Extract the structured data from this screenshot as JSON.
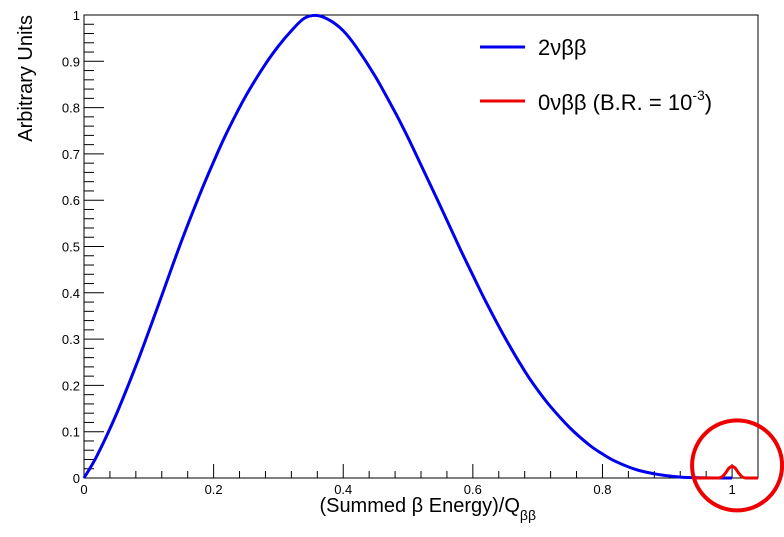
{
  "chart_data": {
    "type": "line",
    "xlabel": "(Summed β Energy)/Q",
    "xlabel_sub": "ββ",
    "ylabel": "Arbitrary Units",
    "xlim": [
      0,
      1.04
    ],
    "ylim": [
      0,
      1
    ],
    "grid": false,
    "legend_position": "top-right",
    "x_ticks": [
      {
        "value": 0,
        "label": "0"
      },
      {
        "value": 0.2,
        "label": "0.2"
      },
      {
        "value": 0.4,
        "label": "0.4"
      },
      {
        "value": 0.6,
        "label": "0.6"
      },
      {
        "value": 0.8,
        "label": "0.8"
      },
      {
        "value": 1,
        "label": "1"
      }
    ],
    "y_ticks": [
      {
        "value": 0,
        "label": "0"
      },
      {
        "value": 0.1,
        "label": "0.1"
      },
      {
        "value": 0.2,
        "label": "0.2"
      },
      {
        "value": 0.3,
        "label": "0.3"
      },
      {
        "value": 0.4,
        "label": "0.4"
      },
      {
        "value": 0.5,
        "label": "0.5"
      },
      {
        "value": 0.6,
        "label": "0.6"
      },
      {
        "value": 0.7,
        "label": "0.7"
      },
      {
        "value": 0.8,
        "label": "0.8"
      },
      {
        "value": 0.9,
        "label": "0.9"
      },
      {
        "value": 1,
        "label": "1"
      }
    ],
    "series": [
      {
        "name": "2νββ",
        "color": "#0000ee",
        "x": [
          0,
          0.02,
          0.05,
          0.08,
          0.1,
          0.12,
          0.15,
          0.18,
          0.2,
          0.22,
          0.25,
          0.28,
          0.3,
          0.32,
          0.34,
          0.36,
          0.38,
          0.4,
          0.42,
          0.45,
          0.48,
          0.5,
          0.52,
          0.55,
          0.58,
          0.6,
          0.62,
          0.65,
          0.68,
          0.7,
          0.72,
          0.75,
          0.78,
          0.8,
          0.82,
          0.85,
          0.88,
          0.9,
          0.92,
          0.95,
          0.98,
          1.0
        ],
        "y": [
          0,
          0.048,
          0.138,
          0.242,
          0.317,
          0.394,
          0.51,
          0.617,
          0.683,
          0.745,
          0.826,
          0.894,
          0.933,
          0.966,
          0.993,
          0.999,
          0.988,
          0.966,
          0.931,
          0.866,
          0.79,
          0.735,
          0.676,
          0.587,
          0.496,
          0.438,
          0.381,
          0.302,
          0.231,
          0.19,
          0.154,
          0.108,
          0.071,
          0.052,
          0.036,
          0.019,
          0.009,
          0.005,
          0.002,
          0.0005,
          3e-05,
          0
        ]
      },
      {
        "name": "0νββ (B.R. = 10",
        "name_sup": "-3",
        "name_tail": ")",
        "color": "#ee0000",
        "x": [
          0.94,
          0.97,
          0.98,
          0.985,
          0.99,
          0.995,
          1.0,
          1.005,
          1.01,
          1.015,
          1.02,
          1.03,
          1.04
        ],
        "y": [
          0,
          0,
          0.0003,
          0.003,
          0.011,
          0.021,
          0.025,
          0.021,
          0.011,
          0.003,
          0.0003,
          0,
          0
        ]
      }
    ],
    "annotations": [
      {
        "type": "circle",
        "color": "#ee0000",
        "x": 1.0,
        "y": 0.01
      }
    ]
  }
}
